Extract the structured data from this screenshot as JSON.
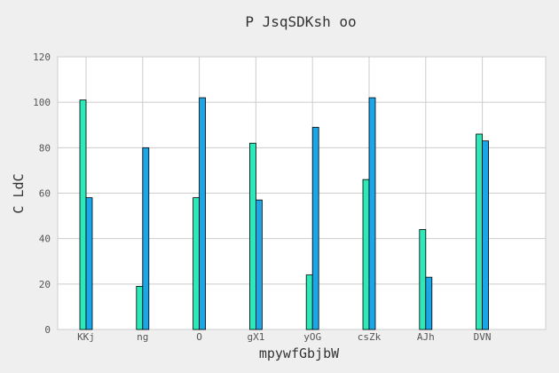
{
  "chart_data": {
    "type": "bar",
    "title": "P JsqSDKsh oo",
    "xlabel": "mpywfGbjbW",
    "ylabel": "C LdC",
    "categories": [
      "KKj",
      "ng",
      "O",
      "gX1",
      "yOG",
      "csZk",
      "AJh",
      "DVN"
    ],
    "series": [
      {
        "values": [
          101,
          19,
          58,
          82,
          24,
          66,
          44,
          86
        ],
        "color": "#2de8b8"
      },
      {
        "values": [
          58,
          80,
          102,
          57,
          89,
          102,
          23,
          83
        ],
        "color": "#1aa6e8"
      }
    ],
    "ylim": [
      0,
      120
    ],
    "yticks": [
      0,
      20,
      40,
      60,
      80,
      100,
      120
    ],
    "grid": true,
    "legend": "none"
  }
}
